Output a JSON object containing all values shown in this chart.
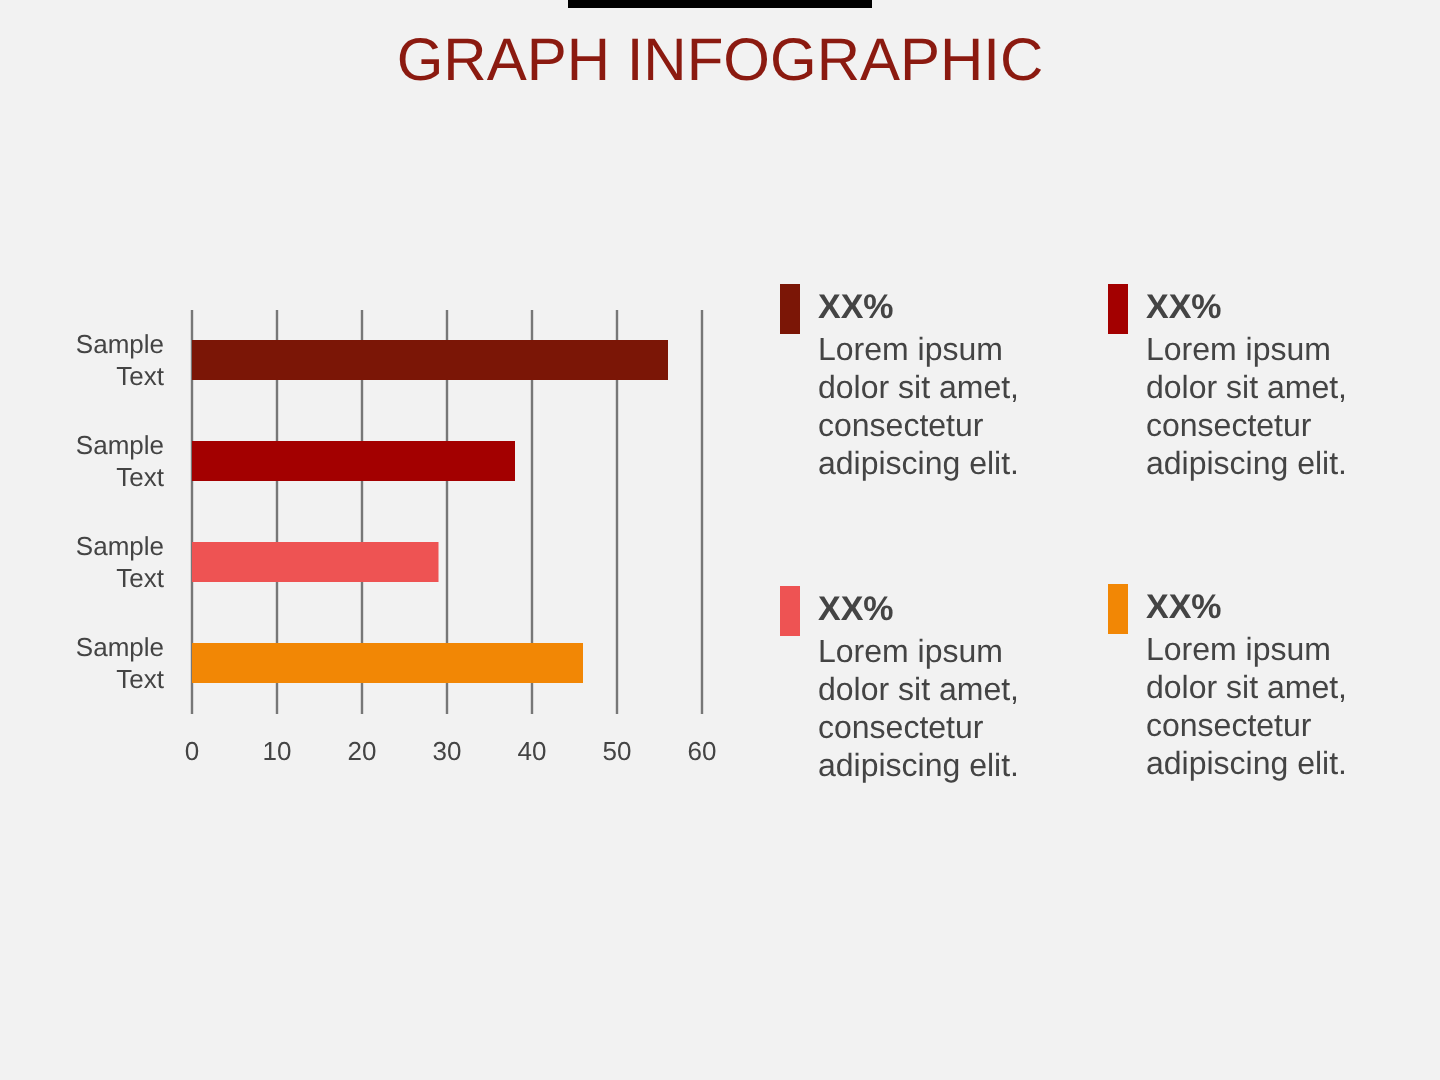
{
  "chart_data": {
    "type": "bar",
    "orientation": "horizontal",
    "title": "GRAPH INFOGRAPHIC",
    "categories": [
      "Sample Text",
      "Sample Text",
      "Sample Text",
      "Sample Text"
    ],
    "values": [
      56,
      38,
      29,
      46
    ],
    "colors": [
      "#7b1606",
      "#a30000",
      "#ee5353",
      "#f28705"
    ],
    "xlim": [
      0,
      60
    ],
    "xticks": [
      0,
      10,
      20,
      30,
      40,
      50,
      60
    ],
    "grid": "x",
    "annotations": [
      "XX%",
      "Lorem ipsum dolor sit amet, consectetur adipiscing elit.",
      "XX%",
      "Lorem ipsum dolor sit amet, consectetur adipiscing elit.",
      "XX%",
      "Lorem ipsum dolor sit amet, consectetur adipiscing elit.",
      "XX%",
      "Lorem ipsum dolor sit amet, consectetur adipiscing elit."
    ]
  }
}
